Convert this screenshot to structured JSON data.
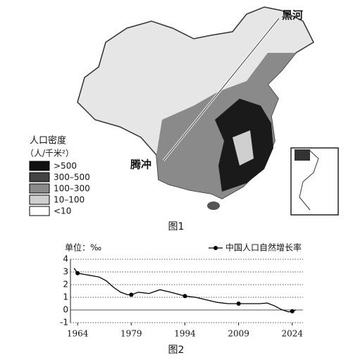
{
  "map": {
    "places": [
      "黑河",
      "腾冲"
    ],
    "legend": {
      "title": "人口密度",
      "unit": "（人/千米²）",
      "items": [
        ">500",
        "300–500",
        "100–300",
        "10–100",
        "<10"
      ]
    },
    "caption": "图1"
  },
  "chart_data": {
    "type": "line",
    "y_label": "单位：‰",
    "caption": "图2",
    "x": [
      1963,
      1964,
      1966,
      1968,
      1970,
      1972,
      1974,
      1976,
      1978,
      1979,
      1981,
      1984,
      1987,
      1990,
      1994,
      1997,
      2000,
      2003,
      2006,
      2009,
      2012,
      2015,
      2017,
      2019,
      2021,
      2022,
      2023,
      2024,
      2025
    ],
    "series": [
      {
        "name": "中国人口自然增长率",
        "color": "#000000",
        "values": [
          3.3,
          2.9,
          2.8,
          2.7,
          2.6,
          2.3,
          1.8,
          1.4,
          1.2,
          1.2,
          1.4,
          1.3,
          1.6,
          1.4,
          1.1,
          1.0,
          0.8,
          0.6,
          0.5,
          0.5,
          0.5,
          0.5,
          0.55,
          0.33,
          0.03,
          -0.06,
          -0.15,
          -0.1,
          0
        ]
      }
    ],
    "xlim": [
      1962,
      2027
    ],
    "xticks": [
      1964,
      1979,
      1994,
      2009,
      2024
    ],
    "ylim": [
      -1,
      4
    ],
    "yticks": [
      -1,
      0,
      1,
      2,
      3,
      4
    ],
    "grid": true
  }
}
